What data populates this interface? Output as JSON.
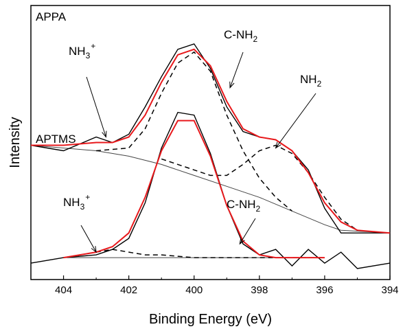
{
  "chart_data": {
    "type": "line",
    "xlabel": "Binding Energy (eV)",
    "ylabel": "Intensity",
    "xlim": [
      405,
      394
    ],
    "x_reversed": true,
    "x_ticks": [
      404,
      402,
      400,
      398,
      396,
      394
    ],
    "x_tick_labels": [
      "404",
      "402",
      "400",
      "398",
      "396",
      "394"
    ],
    "y_ticks_shown": false,
    "grid": false,
    "legend": "none",
    "colors": {
      "raw": "#000000",
      "fit_envelope": "#e8191c",
      "components": "#000000",
      "background": "#444444"
    },
    "panels": [
      {
        "label": "APPA",
        "raw": {
          "x": [
            405.0,
            404.0,
            403.0,
            402.5,
            402.0,
            401.5,
            401.0,
            400.5,
            400.0,
            399.5,
            399.0,
            398.5,
            398.0,
            397.5,
            397.0,
            396.5,
            396.0,
            395.5,
            395.0,
            394.0
          ],
          "y": [
            0.49,
            0.47,
            0.52,
            0.5,
            0.53,
            0.63,
            0.74,
            0.84,
            0.86,
            0.77,
            0.63,
            0.54,
            0.52,
            0.51,
            0.47,
            0.4,
            0.26,
            0.17,
            0.17,
            0.17
          ]
        },
        "fit_envelope": {
          "x": [
            405.0,
            404.0,
            403.0,
            402.5,
            402.0,
            401.5,
            401.0,
            400.5,
            400.0,
            399.5,
            399.0,
            398.5,
            398.0,
            397.5,
            397.0,
            396.5,
            396.0,
            395.5,
            395.0,
            394.0
          ],
          "y": [
            0.49,
            0.49,
            0.5,
            0.5,
            0.52,
            0.6,
            0.72,
            0.82,
            0.84,
            0.78,
            0.65,
            0.55,
            0.52,
            0.51,
            0.47,
            0.39,
            0.28,
            0.21,
            0.18,
            0.17
          ]
        },
        "components": [
          {
            "label": "C-NH2",
            "x": [
              403.0,
              402.0,
              401.5,
              401.0,
              400.5,
              400.0,
              399.5,
              399.0,
              398.5,
              398.0,
              397.5,
              397.0
            ],
            "y": [
              0.47,
              0.48,
              0.55,
              0.68,
              0.79,
              0.83,
              0.76,
              0.6,
              0.47,
              0.37,
              0.3,
              0.25
            ]
          },
          {
            "label": "NH2",
            "x": [
              401.0,
              400.0,
              399.5,
              399.0,
              398.5,
              398.0,
              397.5,
              397.0,
              396.5,
              396.0,
              395.5,
              395.0
            ],
            "y": [
              0.44,
              0.4,
              0.38,
              0.38,
              0.42,
              0.47,
              0.49,
              0.46,
              0.39,
              0.3,
              0.22,
              0.18
            ]
          }
        ],
        "background": {
          "x": [
            405.0,
            403.0,
            402.0,
            401.0,
            400.0,
            399.0,
            398.0,
            397.0,
            396.0,
            395.5,
            394.0
          ],
          "y": [
            0.49,
            0.47,
            0.45,
            0.42,
            0.38,
            0.34,
            0.3,
            0.25,
            0.2,
            0.18,
            0.17
          ]
        },
        "annotations": [
          {
            "text": "NH",
            "sub": "3",
            "sup": "+",
            "arrow_to": [
              402.7,
              0.52
            ]
          },
          {
            "text": "C-NH",
            "sub": "2",
            "sup": "",
            "arrow_to": [
              398.9,
              0.7
            ]
          },
          {
            "text": "NH",
            "sub": "2",
            "sup": "",
            "arrow_to": [
              397.5,
              0.48
            ]
          }
        ]
      },
      {
        "label": "APTMS",
        "raw": {
          "x": [
            405.0,
            404.0,
            403.0,
            402.5,
            402.0,
            401.5,
            401.0,
            400.5,
            400.0,
            399.5,
            399.0,
            398.5,
            398.0,
            397.5,
            397.0,
            396.5,
            396.0,
            395.5,
            395.0,
            394.0
          ],
          "y": [
            0.06,
            0.08,
            0.09,
            0.11,
            0.15,
            0.28,
            0.48,
            0.61,
            0.6,
            0.46,
            0.27,
            0.13,
            0.09,
            0.11,
            0.05,
            0.11,
            0.06,
            0.1,
            0.04,
            0.06
          ]
        },
        "fit_envelope": {
          "x": [
            404.0,
            403.5,
            403.0,
            402.5,
            402.0,
            401.5,
            401.0,
            400.5,
            400.0,
            399.5,
            399.0,
            398.5,
            398.0,
            397.5,
            397.0,
            396.0
          ],
          "y": [
            0.08,
            0.09,
            0.1,
            0.12,
            0.17,
            0.3,
            0.47,
            0.58,
            0.58,
            0.45,
            0.27,
            0.14,
            0.09,
            0.08,
            0.08,
            0.08
          ]
        },
        "components": [
          {
            "label": "NH3+",
            "x": [
              404.0,
              403.0,
              402.5,
              402.0,
              401.5,
              401.0,
              400.0,
              399.0,
              398.0,
              397.0,
              396.0
            ],
            "y": [
              0.08,
              0.1,
              0.11,
              0.1,
              0.09,
              0.09,
              0.08,
              0.08,
              0.08,
              0.08,
              0.08
            ]
          }
        ],
        "background": {
          "x": [
            404.0,
            396.0
          ],
          "y": [
            0.08,
            0.08
          ]
        },
        "annotations": [
          {
            "text": "NH",
            "sub": "3",
            "sup": "+",
            "arrow_to": [
              403.0,
              0.1
            ]
          },
          {
            "text": "C-NH",
            "sub": "2",
            "sup": "",
            "arrow_to": [
              398.6,
              0.13
            ]
          }
        ]
      }
    ]
  }
}
